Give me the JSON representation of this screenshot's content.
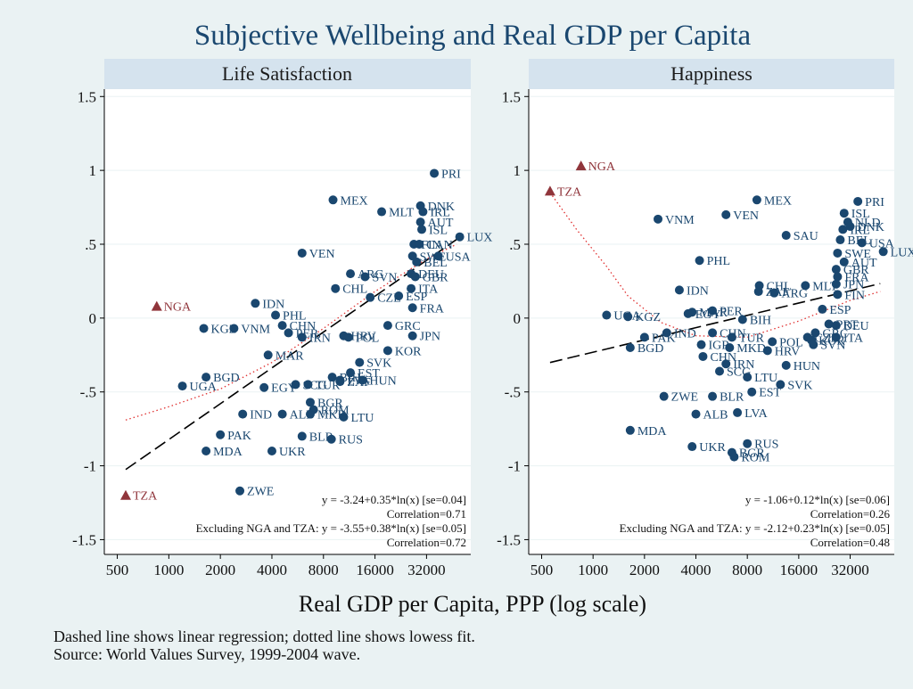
{
  "chart_data": {
    "type": "scatter",
    "title": "Subjective Wellbeing and Real GDP per Capita",
    "xlabel": "Real GDP per Capita, PPP (log scale)",
    "x_scale": "log",
    "xlim": [
      420,
      58000
    ],
    "x_ticks": [
      500,
      1000,
      2000,
      4000,
      8000,
      16000,
      32000
    ],
    "x_tick_labels": [
      "500",
      "1000",
      "2000",
      "4000",
      "8000",
      "16000",
      "32000"
    ],
    "ylim": [
      -1.6,
      1.55
    ],
    "y_ticks": [
      1.5,
      1,
      0.5,
      0,
      -0.5,
      -1,
      -1.5
    ],
    "y_tick_labels": [
      "1.5",
      "1",
      ".5",
      "0",
      "-.5",
      "-1",
      "-1.5"
    ],
    "grid": "horizontal",
    "notes": [
      "Dashed line shows linear regression; dotted line shows lowess fit.",
      "Source: World Values Survey, 1999-2004 wave."
    ],
    "colors": {
      "point": "#1a476f",
      "outlier": "#90353b",
      "lowess": "#e03030",
      "title": "#1a476f",
      "panel_header": "#d5e3ee",
      "background": "#eaf2f3"
    },
    "panels": [
      {
        "title": "Life Satisfaction",
        "regression": {
          "intercept": -3.24,
          "slope": 0.35
        },
        "lowess": [
          [
            560,
            -0.69
          ],
          [
            1000,
            -0.6
          ],
          [
            2000,
            -0.48
          ],
          [
            4000,
            -0.3
          ],
          [
            8000,
            -0.07
          ],
          [
            16000,
            0.18
          ],
          [
            32000,
            0.4
          ],
          [
            48000,
            0.5
          ]
        ],
        "stats_text": [
          "y = -3.24+0.35*ln(x) [se=0.04]",
          "Correlation=0.71",
          "Excluding NGA and TZA: y = -3.55+0.38*ln(x) [se=0.05]",
          "Correlation=0.72"
        ],
        "points": [
          {
            "label": "PRI",
            "x": 35500,
            "y": 0.98
          },
          {
            "label": "MEX",
            "x": 9100,
            "y": 0.8
          },
          {
            "label": "MLT",
            "x": 17500,
            "y": 0.72
          },
          {
            "label": "DNK",
            "x": 29500,
            "y": 0.76
          },
          {
            "label": "IRL",
            "x": 30500,
            "y": 0.72
          },
          {
            "label": "AUT",
            "x": 29500,
            "y": 0.65
          },
          {
            "label": "ISL",
            "x": 30000,
            "y": 0.6
          },
          {
            "label": "LUX",
            "x": 50000,
            "y": 0.55
          },
          {
            "label": "FIN",
            "x": 27000,
            "y": 0.5
          },
          {
            "label": "CAN",
            "x": 29000,
            "y": 0.5
          },
          {
            "label": "SWE",
            "x": 26500,
            "y": 0.42
          },
          {
            "label": "USA",
            "x": 37500,
            "y": 0.42
          },
          {
            "label": "BEL",
            "x": 28000,
            "y": 0.38
          },
          {
            "label": "VEN",
            "x": 6000,
            "y": 0.44
          },
          {
            "label": "ARG",
            "x": 11500,
            "y": 0.3
          },
          {
            "label": "SVN",
            "x": 14000,
            "y": 0.28
          },
          {
            "label": "DEU",
            "x": 26000,
            "y": 0.3
          },
          {
            "label": "GBR",
            "x": 27500,
            "y": 0.28
          },
          {
            "label": "CHL",
            "x": 9400,
            "y": 0.2
          },
          {
            "label": "ITA",
            "x": 26000,
            "y": 0.2
          },
          {
            "label": "CZE",
            "x": 15000,
            "y": 0.14
          },
          {
            "label": "ESP",
            "x": 22000,
            "y": 0.15
          },
          {
            "label": "FRA",
            "x": 26500,
            "y": 0.07
          },
          {
            "label": "IDN",
            "x": 3200,
            "y": 0.1
          },
          {
            "label": "PHL",
            "x": 4200,
            "y": 0.02
          },
          {
            "label": "CHN",
            "x": 4600,
            "y": -0.05
          },
          {
            "label": "KGZ",
            "x": 1600,
            "y": -0.07
          },
          {
            "label": "VNM",
            "x": 2400,
            "y": -0.07
          },
          {
            "label": "PER",
            "x": 5000,
            "y": -0.1
          },
          {
            "label": "IRN",
            "x": 6000,
            "y": -0.13
          },
          {
            "label": "HRV",
            "x": 10500,
            "y": -0.12
          },
          {
            "label": "POL",
            "x": 11200,
            "y": -0.13
          },
          {
            "label": "GRC",
            "x": 19000,
            "y": -0.05
          },
          {
            "label": "JPN",
            "x": 26500,
            "y": -0.12
          },
          {
            "label": "NGA",
            "x": 850,
            "y": 0.08,
            "marker": "triangle"
          },
          {
            "label": "MAR",
            "x": 3800,
            "y": -0.25
          },
          {
            "label": "KOR",
            "x": 19000,
            "y": -0.22
          },
          {
            "label": "SVK",
            "x": 13000,
            "y": -0.3
          },
          {
            "label": "EST",
            "x": 11500,
            "y": -0.37
          },
          {
            "label": "BIH",
            "x": 9000,
            "y": -0.4
          },
          {
            "label": "HUN",
            "x": 13500,
            "y": -0.42
          },
          {
            "label": "LVA",
            "x": 10000,
            "y": -0.42
          },
          {
            "label": "SCG",
            "x": 5500,
            "y": -0.45
          },
          {
            "label": "ZAF",
            "x": 10000,
            "y": -0.43
          },
          {
            "label": "BGD",
            "x": 1650,
            "y": -0.4
          },
          {
            "label": "UGA",
            "x": 1200,
            "y": -0.46
          },
          {
            "label": "EGY",
            "x": 3600,
            "y": -0.47
          },
          {
            "label": "TUR",
            "x": 6500,
            "y": -0.45
          },
          {
            "label": "LTU",
            "x": 10500,
            "y": -0.67
          },
          {
            "label": "ROM",
            "x": 7000,
            "y": -0.62
          },
          {
            "label": "BGR",
            "x": 6700,
            "y": -0.57
          },
          {
            "label": "MKD",
            "x": 6700,
            "y": -0.65
          },
          {
            "label": "MDA",
            "x": 1650,
            "y": -0.9
          },
          {
            "label": "IND",
            "x": 2700,
            "y": -0.65
          },
          {
            "label": "ALB",
            "x": 4600,
            "y": -0.65
          },
          {
            "label": "PAK",
            "x": 2000,
            "y": -0.79
          },
          {
            "label": "BLR",
            "x": 6000,
            "y": -0.8
          },
          {
            "label": "RUS",
            "x": 8900,
            "y": -0.82
          },
          {
            "label": "UKR",
            "x": 4000,
            "y": -0.9
          },
          {
            "label": "ZWE",
            "x": 2600,
            "y": -1.17
          },
          {
            "label": "TZA",
            "x": 560,
            "y": -1.2,
            "marker": "triangle"
          }
        ]
      },
      {
        "title": "Happiness",
        "regression": {
          "intercept": -1.06,
          "slope": 0.12
        },
        "lowess": [
          [
            560,
            0.85
          ],
          [
            800,
            0.6
          ],
          [
            1200,
            0.35
          ],
          [
            1600,
            0.15
          ],
          [
            2500,
            -0.03
          ],
          [
            4000,
            -0.12
          ],
          [
            8000,
            -0.13
          ],
          [
            16000,
            -0.02
          ],
          [
            32000,
            0.12
          ],
          [
            48000,
            0.18
          ]
        ],
        "stats_text": [
          "y = -1.06+0.12*ln(x) [se=0.06]",
          "Correlation=0.26",
          "Excluding NGA and TZA: y = -2.12+0.23*ln(x) [se=0.05]",
          "Correlation=0.48"
        ],
        "points": [
          {
            "label": "NGA",
            "x": 850,
            "y": 1.03,
            "marker": "triangle"
          },
          {
            "label": "TZA",
            "x": 560,
            "y": 0.86,
            "marker": "triangle"
          },
          {
            "label": "PRI",
            "x": 35500,
            "y": 0.79
          },
          {
            "label": "MEX",
            "x": 9100,
            "y": 0.8
          },
          {
            "label": "VEN",
            "x": 6000,
            "y": 0.7
          },
          {
            "label": "VNM",
            "x": 2400,
            "y": 0.67
          },
          {
            "label": "ISL",
            "x": 29500,
            "y": 0.71
          },
          {
            "label": "NLD",
            "x": 31000,
            "y": 0.65
          },
          {
            "label": "DNK",
            "x": 32000,
            "y": 0.62
          },
          {
            "label": "IRL",
            "x": 29000,
            "y": 0.6
          },
          {
            "label": "SAU",
            "x": 13500,
            "y": 0.56
          },
          {
            "label": "BEL",
            "x": 28000,
            "y": 0.53
          },
          {
            "label": "USA",
            "x": 37500,
            "y": 0.51
          },
          {
            "label": "SWE",
            "x": 27000,
            "y": 0.44
          },
          {
            "label": "LUX",
            "x": 50000,
            "y": 0.45
          },
          {
            "label": "AUT",
            "x": 29500,
            "y": 0.38
          },
          {
            "label": "GBR",
            "x": 26500,
            "y": 0.33
          },
          {
            "label": "PHL",
            "x": 4200,
            "y": 0.39
          },
          {
            "label": "FRA",
            "x": 27000,
            "y": 0.28
          },
          {
            "label": "IDN",
            "x": 3200,
            "y": 0.19
          },
          {
            "label": "CHL",
            "x": 9400,
            "y": 0.22
          },
          {
            "label": "MLT",
            "x": 17500,
            "y": 0.22
          },
          {
            "label": "JPN",
            "x": 26500,
            "y": 0.23
          },
          {
            "label": "ZAF",
            "x": 9300,
            "y": 0.18
          },
          {
            "label": "ARG",
            "x": 11500,
            "y": 0.17
          },
          {
            "label": "FIN",
            "x": 27000,
            "y": 0.16
          },
          {
            "label": "ESP",
            "x": 22000,
            "y": 0.06
          },
          {
            "label": "PER",
            "x": 5000,
            "y": 0.05
          },
          {
            "label": "MAR",
            "x": 3800,
            "y": 0.04
          },
          {
            "label": "EGY",
            "x": 3600,
            "y": 0.03
          },
          {
            "label": "UGA",
            "x": 1200,
            "y": 0.02
          },
          {
            "label": "KGZ",
            "x": 1600,
            "y": 0.01
          },
          {
            "label": "BIH",
            "x": 7500,
            "y": -0.01
          },
          {
            "label": "PRT",
            "x": 24000,
            "y": -0.04
          },
          {
            "label": "DEU",
            "x": 26500,
            "y": -0.05
          },
          {
            "label": "GRC",
            "x": 20000,
            "y": -0.1
          },
          {
            "label": "CHN",
            "x": 5000,
            "y": -0.1
          },
          {
            "label": "CZE",
            "x": 18000,
            "y": -0.13
          },
          {
            "label": "ITA",
            "x": 26500,
            "y": -0.13
          },
          {
            "label": "IND",
            "x": 2700,
            "y": -0.1
          },
          {
            "label": "PAK",
            "x": 2000,
            "y": -0.13
          },
          {
            "label": "TUR",
            "x": 6500,
            "y": -0.13
          },
          {
            "label": "POL",
            "x": 11200,
            "y": -0.16
          },
          {
            "label": "KOR",
            "x": 19000,
            "y": -0.15
          },
          {
            "label": "SVN",
            "x": 19500,
            "y": -0.18
          },
          {
            "label": "BGD",
            "x": 1650,
            "y": -0.2
          },
          {
            "label": "IGR",
            "x": 4300,
            "y": -0.18
          },
          {
            "label": "MKD",
            "x": 6300,
            "y": -0.2
          },
          {
            "label": "HRV",
            "x": 10500,
            "y": -0.22
          },
          {
            "label": "CHN",
            "x": 4400,
            "y": -0.26
          },
          {
            "label": "IRN",
            "x": 6000,
            "y": -0.31
          },
          {
            "label": "HUN",
            "x": 13500,
            "y": -0.32
          },
          {
            "label": "SCG",
            "x": 5500,
            "y": -0.36
          },
          {
            "label": "LTU",
            "x": 8000,
            "y": -0.4
          },
          {
            "label": "SVK",
            "x": 12500,
            "y": -0.45
          },
          {
            "label": "EST",
            "x": 8500,
            "y": -0.5
          },
          {
            "label": "ZWE",
            "x": 2600,
            "y": -0.53
          },
          {
            "label": "BLR",
            "x": 5000,
            "y": -0.53
          },
          {
            "label": "ALB",
            "x": 4000,
            "y": -0.65
          },
          {
            "label": "LVA",
            "x": 7000,
            "y": -0.64
          },
          {
            "label": "MDA",
            "x": 1650,
            "y": -0.76
          },
          {
            "label": "UKR",
            "x": 3800,
            "y": -0.87
          },
          {
            "label": "RUS",
            "x": 8000,
            "y": -0.85
          },
          {
            "label": "BGR",
            "x": 6500,
            "y": -0.91
          },
          {
            "label": "ROM",
            "x": 6700,
            "y": -0.94
          }
        ]
      }
    ]
  }
}
